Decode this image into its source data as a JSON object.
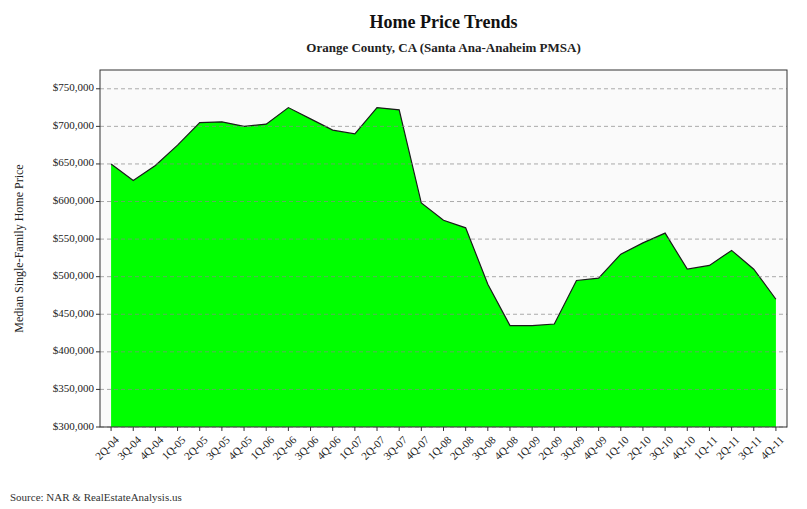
{
  "chart_data": {
    "type": "area",
    "title": "Home Price Trends",
    "subtitle": "Orange County, CA (Santa Ana-Anaheim PMSA)",
    "ylabel": "Median Single-Family Home Price",
    "source": "Source: NAR & RealEstateAnalysis.us",
    "color": "#00FF00",
    "grid": true,
    "ylim": [
      300000,
      775000
    ],
    "yticks": [
      {
        "value": 300000,
        "label": "$300,000"
      },
      {
        "value": 350000,
        "label": "$350,000"
      },
      {
        "value": 400000,
        "label": "$400,000"
      },
      {
        "value": 450000,
        "label": "$450,000"
      },
      {
        "value": 500000,
        "label": "$500,000"
      },
      {
        "value": 550000,
        "label": "$550,000"
      },
      {
        "value": 600000,
        "label": "$600,000"
      },
      {
        "value": 650000,
        "label": "$650,000"
      },
      {
        "value": 700000,
        "label": "$700,000"
      },
      {
        "value": 750000,
        "label": "$750,000"
      }
    ],
    "categories": [
      "2Q-04",
      "3Q-04",
      "4Q-04",
      "1Q-05",
      "2Q-05",
      "3Q-05",
      "4Q-05",
      "1Q-06",
      "2Q-06",
      "3Q-06",
      "4Q-06",
      "1Q-07",
      "2Q-07",
      "3Q-07",
      "4Q-07",
      "1Q-08",
      "2Q-08",
      "3Q-08",
      "4Q-08",
      "1Q-09",
      "2Q-09",
      "3Q-09",
      "4Q-09",
      "1Q-10",
      "2Q-10",
      "3Q-10",
      "4Q-10",
      "1Q-11",
      "2Q-11",
      "3Q-11",
      "4Q-11"
    ],
    "values": [
      650000,
      628000,
      648000,
      675000,
      705000,
      706000,
      700000,
      703000,
      725000,
      710000,
      695000,
      690000,
      725000,
      722000,
      598000,
      575000,
      565000,
      490000,
      435000,
      435000,
      437000,
      495000,
      498000,
      530000,
      545000,
      558000,
      510000,
      515000,
      535000,
      510000,
      470000
    ]
  }
}
